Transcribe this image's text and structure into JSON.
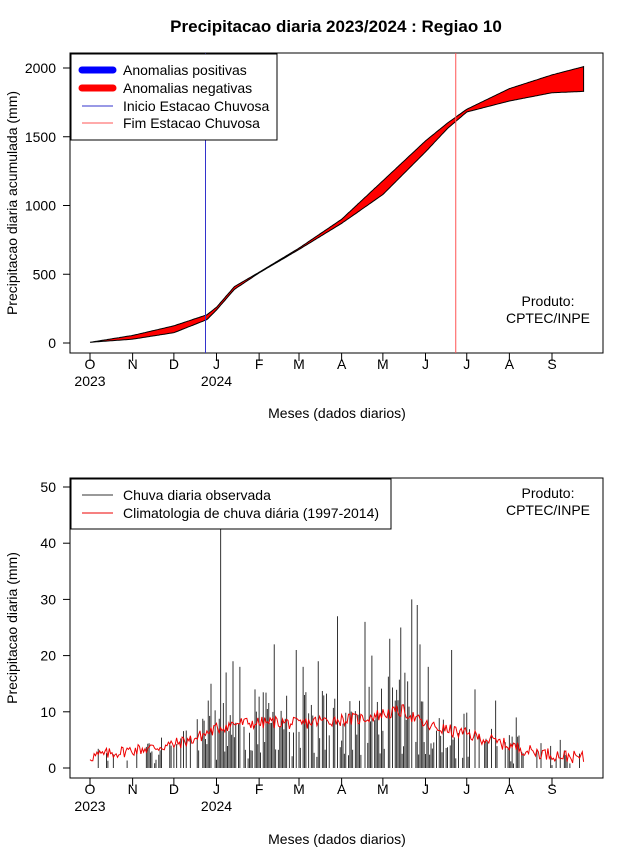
{
  "chart_data": [
    {
      "type": "area",
      "title": "Precipitacao diaria 2023/2024 : Regiao 10",
      "xlabel": "Meses (dados diarios)",
      "ylabel": "Precipitacao diaria acumulada (mm)",
      "ylim": [
        0,
        2000
      ],
      "xlim_days": [
        0,
        360
      ],
      "y_ticks": [
        0,
        500,
        1000,
        1500,
        2000
      ],
      "x_ticks": [
        {
          "label": "O",
          "day": 0,
          "year": "2023"
        },
        {
          "label": "N",
          "day": 31
        },
        {
          "label": "D",
          "day": 61
        },
        {
          "label": "J",
          "day": 92,
          "year": "2024"
        },
        {
          "label": "F",
          "day": 123
        },
        {
          "label": "M",
          "day": 152
        },
        {
          "label": "A",
          "day": 183
        },
        {
          "label": "M",
          "day": 213
        },
        {
          "label": "J",
          "day": 244
        },
        {
          "label": "J",
          "day": 274
        },
        {
          "label": "A",
          "day": 305
        },
        {
          "label": "S",
          "day": 336
        }
      ],
      "legend": {
        "position": "top-left",
        "entries": [
          "Anomalias positivas",
          "Anomalias negativas",
          "Inicio Estacao Chuvosa",
          "Fim Estacao Chuvosa"
        ]
      },
      "colors": {
        "positive": "#0000ff",
        "negative": "#ff0000",
        "onset": "#3333cc",
        "end": "#ff5555"
      },
      "series": [
        {
          "name": "observed_cumulative",
          "x": [
            0,
            31,
            61,
            85,
            92,
            105,
            123,
            152,
            183,
            213,
            244,
            260,
            274,
            305,
            336,
            359
          ],
          "y": [
            5,
            28,
            75,
            170,
            240,
            390,
            510,
            680,
            870,
            1080,
            1390,
            1560,
            1680,
            1760,
            1820,
            1830
          ]
        },
        {
          "name": "climatology_cumulative",
          "x": [
            0,
            31,
            61,
            85,
            92,
            105,
            123,
            152,
            183,
            213,
            244,
            260,
            274,
            305,
            336,
            359
          ],
          "y": [
            5,
            55,
            125,
            205,
            260,
            410,
            515,
            690,
            900,
            1180,
            1470,
            1600,
            1700,
            1850,
            1950,
            2010
          ]
        }
      ],
      "onset_day": 84,
      "end_day": 266,
      "annotation": [
        "Produto:",
        "CPTEC/INPE"
      ]
    },
    {
      "type": "bar",
      "xlabel": "Meses (dados diarios)",
      "ylabel": "Precipitacao diaria (mm)",
      "ylim": [
        0,
        50
      ],
      "xlim_days": [
        0,
        360
      ],
      "y_ticks": [
        0,
        10,
        20,
        30,
        40,
        50
      ],
      "legend": {
        "position": "top-left",
        "entries": [
          "Chuva diaria observada",
          "Climatologia de chuva diária (1997-2014)"
        ]
      },
      "colors": {
        "observed": "#333333",
        "climatology": "#ee0000"
      },
      "observed_peaks": [
        {
          "day": 95,
          "value": 43
        },
        {
          "day": 86,
          "value": 12
        },
        {
          "day": 88,
          "value": 15
        },
        {
          "day": 99,
          "value": 17
        },
        {
          "day": 104,
          "value": 19
        },
        {
          "day": 109,
          "value": 18
        },
        {
          "day": 120,
          "value": 14
        },
        {
          "day": 134,
          "value": 22
        },
        {
          "day": 150,
          "value": 21
        },
        {
          "day": 155,
          "value": 18
        },
        {
          "day": 166,
          "value": 19
        },
        {
          "day": 180,
          "value": 27
        },
        {
          "day": 200,
          "value": 26
        },
        {
          "day": 205,
          "value": 20
        },
        {
          "day": 218,
          "value": 23
        },
        {
          "day": 226,
          "value": 25
        },
        {
          "day": 234,
          "value": 30
        },
        {
          "day": 238,
          "value": 29
        },
        {
          "day": 240,
          "value": 22
        },
        {
          "day": 246,
          "value": 18
        },
        {
          "day": 263,
          "value": 21
        },
        {
          "day": 280,
          "value": 14
        },
        {
          "day": 295,
          "value": 12
        },
        {
          "day": 310,
          "value": 9
        },
        {
          "day": 342,
          "value": 5
        }
      ],
      "climatology": {
        "x": [
          0,
          15,
          31,
          46,
          61,
          76,
          92,
          107,
          123,
          137,
          152,
          167,
          183,
          198,
          213,
          228,
          244,
          259,
          274,
          290,
          305,
          320,
          336,
          350,
          359
        ],
        "y": [
          2.0,
          2.6,
          3.2,
          3.6,
          4.2,
          5.2,
          7.0,
          8.0,
          8.0,
          8.2,
          7.8,
          8.4,
          8.6,
          8.8,
          9.6,
          10.2,
          7.6,
          6.8,
          6.0,
          5.0,
          4.0,
          3.0,
          2.4,
          2.0,
          1.8
        ]
      },
      "annotation": [
        "Produto:",
        "CPTEC/INPE"
      ]
    }
  ]
}
